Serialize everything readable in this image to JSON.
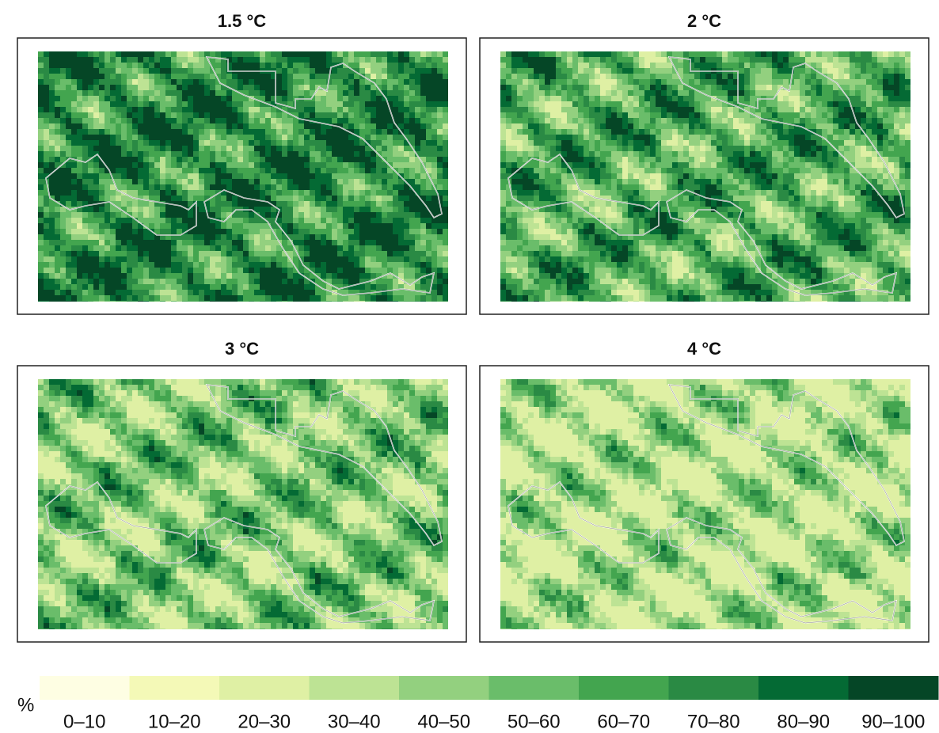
{
  "panels": [
    {
      "title": "1.5 °C"
    },
    {
      "title": "2 °C"
    },
    {
      "title": "3 °C"
    },
    {
      "title": "4 °C"
    }
  ],
  "legend": {
    "unit": "%",
    "classes": [
      {
        "label": "0–10",
        "color": "#fefee3"
      },
      {
        "label": "10–20",
        "color": "#f4f9b7"
      },
      {
        "label": "20–30",
        "color": "#dff0a4"
      },
      {
        "label": "30–40",
        "color": "#bde394"
      },
      {
        "label": "40–50",
        "color": "#93d07f"
      },
      {
        "label": "50–60",
        "color": "#6abd6a"
      },
      {
        "label": "60–70",
        "color": "#43a54f"
      },
      {
        "label": "70–80",
        "color": "#2a8a44"
      },
      {
        "label": "80–90",
        "color": "#046a34"
      },
      {
        "label": "90–100",
        "color": "#054626"
      }
    ]
  }
}
